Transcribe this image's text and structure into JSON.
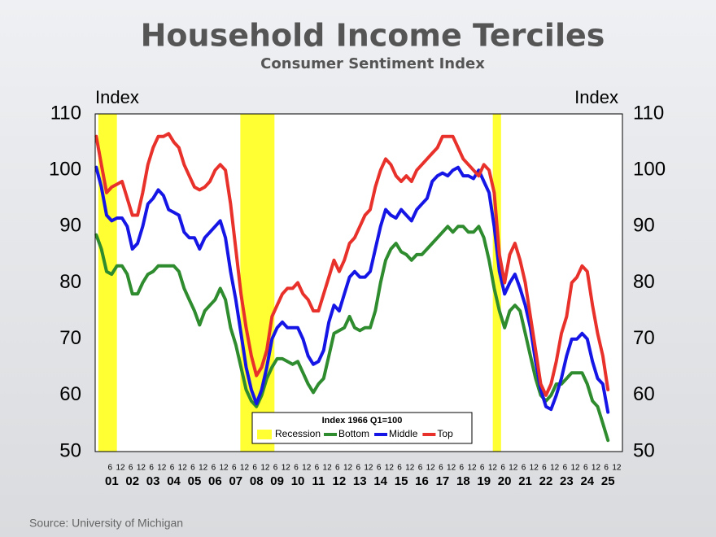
{
  "chart_data": {
    "type": "line",
    "title": "Household Income Terciles",
    "subtitle": "Consumer Sentiment Index",
    "y_label": "Index",
    "y2_label": "Index",
    "source": "Source:  University of Michigan",
    "legend_title": "Index 1966 Q1=100",
    "legend_position": "bottom-center",
    "recession_label": "Recession",
    "recession_color": "#ffff33",
    "recessions": [
      [
        2000.85,
        2001.75
      ],
      [
        2007.72,
        2009.37
      ],
      [
        2019.93,
        2020.33
      ]
    ],
    "x": [
      2000.75,
      2001,
      2001.25,
      2001.5,
      2001.75,
      2002,
      2002.25,
      2002.5,
      2002.75,
      2003,
      2003.25,
      2003.5,
      2003.75,
      2004,
      2004.25,
      2004.5,
      2004.75,
      2005,
      2005.25,
      2005.5,
      2005.75,
      2006,
      2006.25,
      2006.5,
      2006.75,
      2007,
      2007.25,
      2007.5,
      2007.75,
      2008,
      2008.25,
      2008.5,
      2008.75,
      2009,
      2009.25,
      2009.5,
      2009.75,
      2010,
      2010.25,
      2010.5,
      2010.75,
      2011,
      2011.25,
      2011.5,
      2011.75,
      2012,
      2012.25,
      2012.5,
      2012.75,
      2013,
      2013.25,
      2013.5,
      2013.75,
      2014,
      2014.25,
      2014.5,
      2014.75,
      2015,
      2015.25,
      2015.5,
      2015.75,
      2016,
      2016.25,
      2016.5,
      2016.75,
      2017,
      2017.25,
      2017.5,
      2017.75,
      2018,
      2018.25,
      2018.5,
      2018.75,
      2019,
      2019.25,
      2019.5,
      2019.75,
      2020,
      2020.25,
      2020.5,
      2020.75,
      2021,
      2021.25,
      2021.5,
      2021.75,
      2022,
      2022.25,
      2022.5,
      2022.75,
      2023,
      2023.25,
      2023.5,
      2023.75,
      2024,
      2024.25,
      2024.5,
      2024.75,
      2025,
      2025.25,
      2025.5
    ],
    "series": [
      {
        "name": "Bottom",
        "color": "#2e8b2e",
        "values": [
          88.5,
          86,
          82,
          81.5,
          83,
          83,
          81.5,
          78,
          78,
          80,
          81.5,
          82,
          83,
          83,
          83,
          83,
          82,
          79,
          77,
          75,
          72.5,
          75,
          76,
          77,
          79,
          77,
          72,
          69,
          65,
          61,
          59,
          58,
          60,
          63,
          65,
          66.5,
          66.5,
          66,
          65.5,
          66,
          64,
          62,
          60.5,
          62,
          63,
          67,
          71,
          71.5,
          72,
          74,
          72,
          71.5,
          72,
          72,
          75,
          80,
          84,
          86,
          87,
          85.5,
          85,
          84,
          85,
          85,
          86,
          87,
          88,
          89,
          90,
          89,
          90,
          90,
          89,
          89,
          90,
          88,
          84,
          79,
          75,
          72,
          75,
          76,
          75,
          71,
          67,
          63,
          60,
          59,
          60,
          62,
          62,
          63,
          64,
          64,
          64,
          62,
          59,
          58,
          55,
          52
        ]
      },
      {
        "name": "Middle",
        "color": "#1515e6",
        "values": [
          100.5,
          97,
          92,
          91,
          91.5,
          91.5,
          90,
          86,
          87,
          90,
          94,
          95,
          96.5,
          95.5,
          93,
          92.5,
          92,
          89,
          88,
          88,
          86,
          88,
          89,
          90,
          91,
          88,
          82,
          77,
          71,
          65,
          61,
          58.5,
          61,
          65,
          70,
          72,
          73,
          72,
          72,
          72,
          70,
          67,
          65.5,
          66,
          68,
          73,
          76,
          75,
          78,
          81,
          82,
          81,
          81,
          82,
          86,
          90,
          93,
          92,
          91.5,
          93,
          92,
          91,
          93,
          94,
          95,
          98,
          99,
          99.5,
          99,
          100,
          100.5,
          99,
          99,
          98.5,
          100,
          98,
          96,
          90,
          82,
          78,
          80,
          81.5,
          79,
          76,
          72,
          66,
          61,
          58,
          57.5,
          60,
          63,
          67,
          70,
          70,
          71,
          70,
          66,
          63,
          62,
          57
        ]
      },
      {
        "name": "Top",
        "color": "#e8312a",
        "values": [
          106,
          101,
          96,
          97,
          97.5,
          98,
          95,
          92,
          92,
          96,
          101,
          104,
          106,
          106,
          106.5,
          105,
          104,
          101,
          99,
          97,
          96.5,
          97,
          98,
          100,
          101,
          100,
          94,
          86,
          78,
          72,
          67,
          63.5,
          65,
          68,
          74,
          76,
          78,
          79,
          79,
          80,
          78,
          77,
          75,
          75,
          78,
          81,
          84,
          82,
          84,
          87,
          88,
          90,
          92,
          93,
          97,
          100,
          102,
          101,
          99,
          98,
          99,
          98,
          100,
          101,
          102,
          103,
          104,
          106,
          106,
          106,
          104,
          102,
          101,
          100,
          99,
          101,
          100,
          96,
          85,
          80,
          85,
          87,
          84,
          80,
          74,
          68,
          62,
          60,
          62,
          66,
          71,
          74,
          80,
          81,
          83,
          82,
          76,
          71,
          67,
          61
        ]
      }
    ],
    "xlim": [
      2000.7,
      2026.2
    ],
    "ylim": [
      50,
      110
    ],
    "yticks": [
      50,
      60,
      70,
      80,
      90,
      100,
      110
    ],
    "y2lim": [
      50,
      110
    ],
    "y2ticks": [
      50,
      60,
      70,
      80,
      90,
      100,
      110
    ],
    "xticks": [
      {
        "value": 2001.42,
        "label": "6"
      },
      {
        "value": 2001.92,
        "label": "12"
      },
      {
        "value": 2002.42,
        "label": "6"
      },
      {
        "value": 2002.92,
        "label": "12"
      },
      {
        "value": 2003.42,
        "label": "6"
      },
      {
        "value": 2003.92,
        "label": "12"
      },
      {
        "value": 2004.42,
        "label": "6"
      },
      {
        "value": 2004.92,
        "label": "12"
      },
      {
        "value": 2005.42,
        "label": "6"
      },
      {
        "value": 2005.92,
        "label": "12"
      },
      {
        "value": 2006.42,
        "label": "6"
      },
      {
        "value": 2006.92,
        "label": "12"
      },
      {
        "value": 2007.42,
        "label": "6"
      },
      {
        "value": 2007.92,
        "label": "12"
      },
      {
        "value": 2008.42,
        "label": "6"
      },
      {
        "value": 2008.92,
        "label": "12"
      },
      {
        "value": 2009.42,
        "label": "6"
      },
      {
        "value": 2009.92,
        "label": "12"
      },
      {
        "value": 2010.42,
        "label": "6"
      },
      {
        "value": 2010.92,
        "label": "12"
      },
      {
        "value": 2011.42,
        "label": "6"
      },
      {
        "value": 2011.92,
        "label": "12"
      },
      {
        "value": 2012.42,
        "label": "6"
      },
      {
        "value": 2012.92,
        "label": "12"
      },
      {
        "value": 2013.42,
        "label": "6"
      },
      {
        "value": 2013.92,
        "label": "12"
      },
      {
        "value": 2014.42,
        "label": "6"
      },
      {
        "value": 2014.92,
        "label": "12"
      },
      {
        "value": 2015.42,
        "label": "6"
      },
      {
        "value": 2015.92,
        "label": "12"
      },
      {
        "value": 2016.42,
        "label": "6"
      },
      {
        "value": 2016.92,
        "label": "12"
      },
      {
        "value": 2017.42,
        "label": "6"
      },
      {
        "value": 2017.92,
        "label": "12"
      },
      {
        "value": 2018.42,
        "label": "6"
      },
      {
        "value": 2018.92,
        "label": "12"
      },
      {
        "value": 2019.42,
        "label": "6"
      },
      {
        "value": 2019.92,
        "label": "12"
      },
      {
        "value": 2020.42,
        "label": "6"
      },
      {
        "value": 2020.92,
        "label": "12"
      },
      {
        "value": 2021.42,
        "label": "6"
      },
      {
        "value": 2021.92,
        "label": "12"
      },
      {
        "value": 2022.42,
        "label": "6"
      },
      {
        "value": 2022.92,
        "label": "12"
      },
      {
        "value": 2023.42,
        "label": "6"
      },
      {
        "value": 2023.92,
        "label": "12"
      },
      {
        "value": 2024.42,
        "label": "6"
      },
      {
        "value": 2024.92,
        "label": "12"
      },
      {
        "value": 2025.42,
        "label": "6"
      },
      {
        "value": 2025.92,
        "label": "12"
      }
    ],
    "year_labels": [
      {
        "value": 2001.5,
        "label": "01"
      },
      {
        "value": 2002.5,
        "label": "02"
      },
      {
        "value": 2003.5,
        "label": "03"
      },
      {
        "value": 2004.5,
        "label": "04"
      },
      {
        "value": 2005.5,
        "label": "05"
      },
      {
        "value": 2006.5,
        "label": "06"
      },
      {
        "value": 2007.5,
        "label": "07"
      },
      {
        "value": 2008.5,
        "label": "08"
      },
      {
        "value": 2009.5,
        "label": "09"
      },
      {
        "value": 2010.5,
        "label": "10"
      },
      {
        "value": 2011.5,
        "label": "11"
      },
      {
        "value": 2012.5,
        "label": "12"
      },
      {
        "value": 2013.5,
        "label": "13"
      },
      {
        "value": 2014.5,
        "label": "14"
      },
      {
        "value": 2015.5,
        "label": "15"
      },
      {
        "value": 2016.5,
        "label": "16"
      },
      {
        "value": 2017.5,
        "label": "17"
      },
      {
        "value": 2018.5,
        "label": "18"
      },
      {
        "value": 2019.5,
        "label": "19"
      },
      {
        "value": 2020.5,
        "label": "20"
      },
      {
        "value": 2021.5,
        "label": "21"
      },
      {
        "value": 2022.5,
        "label": "22"
      },
      {
        "value": 2023.5,
        "label": "23"
      },
      {
        "value": 2024.5,
        "label": "24"
      },
      {
        "value": 2025.5,
        "label": "25"
      }
    ]
  }
}
